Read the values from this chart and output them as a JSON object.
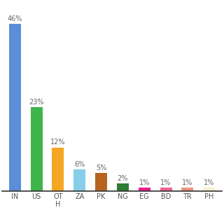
{
  "categories": [
    "IN",
    "US",
    "OT\nH",
    "ZA",
    "PK",
    "NG",
    "EG",
    "BD",
    "TR",
    "PH"
  ],
  "values": [
    46,
    23,
    12,
    6,
    5,
    2,
    1,
    1,
    1,
    1
  ],
  "labels": [
    "46%",
    "23%",
    "12%",
    "6%",
    "5%",
    "2%",
    "1%",
    "1%",
    "1%",
    "1%"
  ],
  "bar_colors": [
    "#5b8dd9",
    "#3cb54a",
    "#f5a623",
    "#87ceeb",
    "#b5651d",
    "#2e7d32",
    "#e91e8c",
    "#f06292",
    "#e8967a",
    "#f5f0d0"
  ],
  "background_color": "#ffffff",
  "ylim": [
    0,
    52
  ],
  "label_fontsize": 7,
  "tick_fontsize": 7
}
